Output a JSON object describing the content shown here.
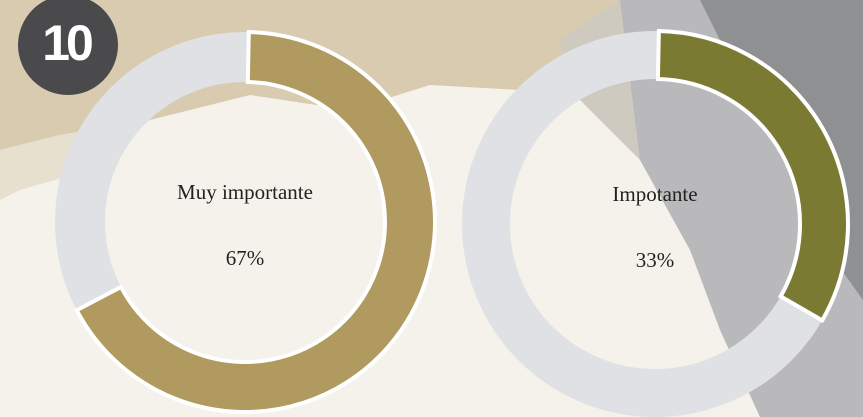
{
  "badge": "10",
  "chart_data": [
    {
      "type": "donut",
      "categories": [
        "Muy importante"
      ],
      "values": [
        67
      ],
      "value_labels": [
        "67%"
      ],
      "color": "#b09a5f",
      "track_color": "#dfe1e4",
      "max": 100
    },
    {
      "type": "donut",
      "categories": [
        "Impotante"
      ],
      "values": [
        33
      ],
      "value_labels": [
        "33%"
      ],
      "color": "#7b7a33",
      "track_color": "#dfe1e4",
      "max": 100
    }
  ]
}
